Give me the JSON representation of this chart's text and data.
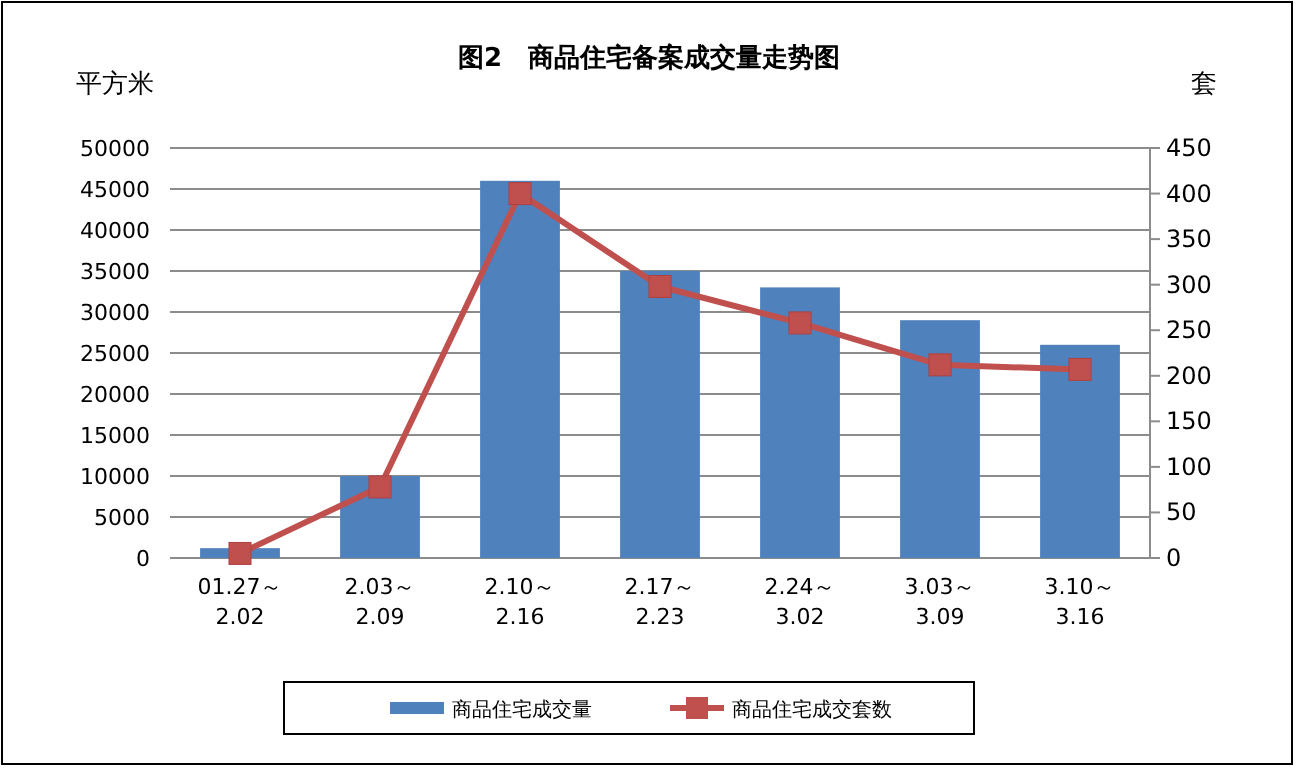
{
  "chart_data": {
    "type": "bar",
    "title": "图2　商品住宅备案成交量走势图",
    "ylabel": "平方米",
    "y2label": "套",
    "categories": [
      "01.27～\n2.02",
      "2.03～\n2.09",
      "2.10～\n2.16",
      "2.17～\n2.23",
      "2.24～\n3.02",
      "3.03～\n3.09",
      "3.10～\n3.16"
    ],
    "series": [
      {
        "name": "商品住宅成交量",
        "color": "#4f81bd",
        "values": [
          1200,
          10000,
          46000,
          35000,
          33000,
          29000,
          26000
        ]
      },
      {
        "name": "商品住宅成交套数",
        "type": "line",
        "axis": "y2",
        "color": "#c0504d",
        "marker": "square",
        "values": [
          5,
          78,
          400,
          298,
          258,
          212,
          207
        ]
      }
    ],
    "ylim": [
      0,
      50000
    ],
    "yticks": [
      0,
      5000,
      10000,
      15000,
      20000,
      25000,
      30000,
      35000,
      40000,
      45000,
      50000
    ],
    "y2lim": [
      0,
      450
    ],
    "y2ticks": [
      0,
      50,
      100,
      150,
      200,
      250,
      300,
      350,
      400,
      450
    ],
    "grid": "y",
    "legend": "bottom"
  }
}
